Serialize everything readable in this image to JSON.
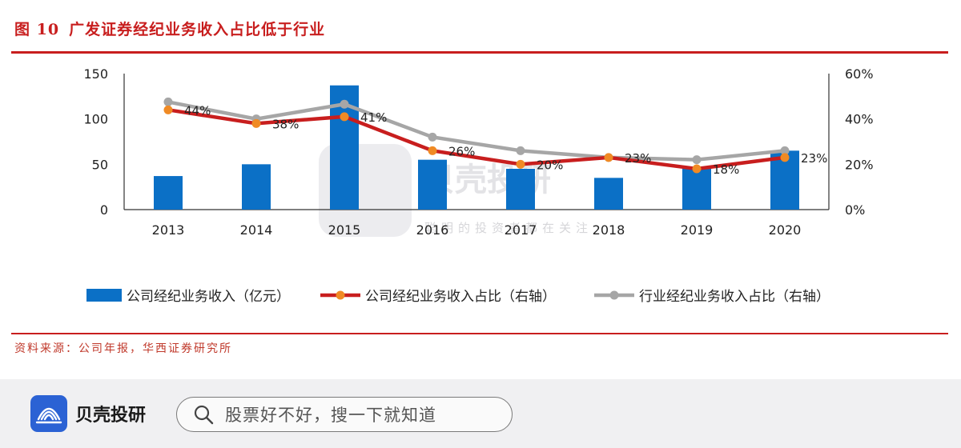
{
  "header": {
    "figure_no": "图 10",
    "title": "广发证券经纪业务收入占比低于行业"
  },
  "source": "资料来源：公司年报，华西证券研究所",
  "watermark": {
    "brand": "贝壳投研",
    "slogan": "聪明的投资者都在关注"
  },
  "colors": {
    "bar": "#0b70c6",
    "company_line": "#c81e1e",
    "company_marker": "#f08a24",
    "industry_line": "#a6a6a6",
    "accent": "#c81e1e"
  },
  "chart_data": {
    "type": "bar",
    "categories": [
      "2013",
      "2014",
      "2015",
      "2016",
      "2017",
      "2018",
      "2019",
      "2020"
    ],
    "left_axis": {
      "ylim": [
        0,
        150
      ],
      "ticks": [
        "0",
        "50",
        "100",
        "150"
      ]
    },
    "right_axis": {
      "ylim": [
        0,
        60
      ],
      "ticks": [
        "0%",
        "20%",
        "40%",
        "60%"
      ]
    },
    "series": [
      {
        "name": "公司经纪业务收入（亿元）",
        "type": "bar",
        "axis": "left",
        "values": [
          37,
          50,
          137,
          55,
          45,
          35,
          45,
          65
        ]
      },
      {
        "name": "公司经纪业务收入占比（右轴）",
        "type": "line",
        "axis": "right",
        "values": [
          44,
          38,
          41,
          26,
          20,
          23,
          18,
          23
        ],
        "labels": [
          "44%",
          "38%",
          "41%",
          "26%",
          "20%",
          "23%",
          "18%",
          "23%"
        ]
      },
      {
        "name": "行业经纪业务收入占比（右轴）",
        "type": "line",
        "axis": "right",
        "values": [
          47.5,
          40,
          46.5,
          32,
          26,
          23,
          22,
          26
        ]
      }
    ],
    "legend": "bottom"
  },
  "footer": {
    "brand": "贝壳投研",
    "search_placeholder": "股票好不好，搜一下就知道"
  }
}
